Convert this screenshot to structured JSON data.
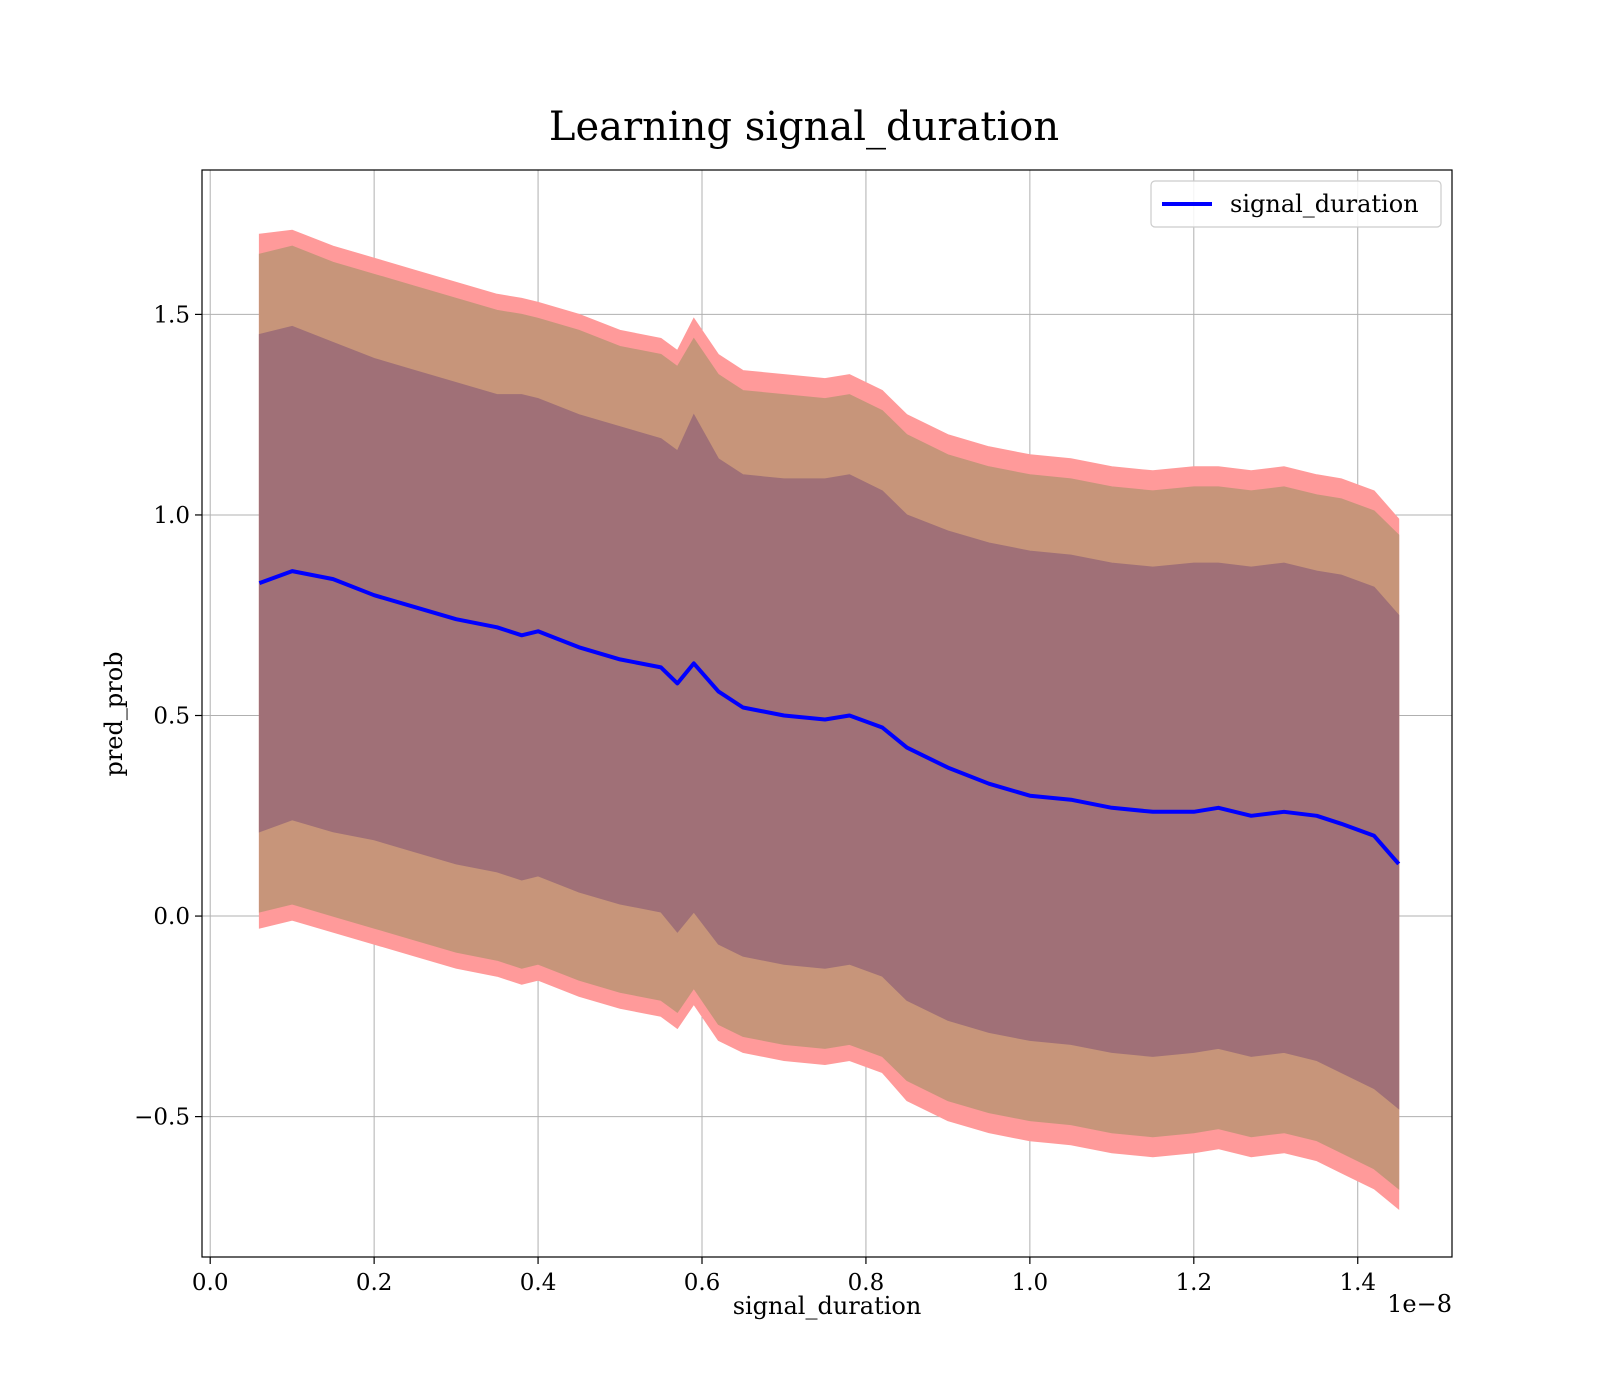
{
  "chart_data": {
    "type": "line",
    "title": "Learning signal_duration",
    "xlabel": "signal_duration",
    "ylabel": "pred_prob",
    "x_offset_label": "1e−8",
    "xlim": [
      -0.01,
      1.515
    ],
    "ylim": [
      -0.85,
      1.86
    ],
    "x_scale_note": "x values in units of 1e-8",
    "xticks": [
      0.0,
      0.2,
      0.4,
      0.6,
      0.8,
      1.0,
      1.2,
      1.4
    ],
    "xtick_labels": [
      "0.0",
      "0.2",
      "0.4",
      "0.6",
      "0.8",
      "1.0",
      "1.2",
      "1.4"
    ],
    "yticks": [
      -0.5,
      0.0,
      0.5,
      1.0,
      1.5
    ],
    "ytick_labels": [
      "−0.5",
      "0.0",
      "0.5",
      "1.0",
      "1.5"
    ],
    "grid": true,
    "legend_position": "top-right",
    "colors": {
      "line": "#0000ff",
      "band_outer": "#ff9a9a",
      "band_middle": "#c7957a",
      "band_inner": "#a07077"
    },
    "series": [
      {
        "name": "signal_duration",
        "x": [
          0.06,
          0.1,
          0.15,
          0.2,
          0.25,
          0.3,
          0.35,
          0.38,
          0.4,
          0.45,
          0.5,
          0.55,
          0.57,
          0.59,
          0.62,
          0.65,
          0.7,
          0.75,
          0.78,
          0.82,
          0.85,
          0.9,
          0.95,
          1.0,
          1.05,
          1.1,
          1.15,
          1.2,
          1.23,
          1.27,
          1.31,
          1.35,
          1.38,
          1.42,
          1.45
        ],
        "y": [
          0.83,
          0.86,
          0.84,
          0.8,
          0.77,
          0.74,
          0.72,
          0.7,
          0.71,
          0.67,
          0.64,
          0.62,
          0.58,
          0.63,
          0.56,
          0.52,
          0.5,
          0.49,
          0.5,
          0.47,
          0.42,
          0.37,
          0.33,
          0.3,
          0.29,
          0.27,
          0.26,
          0.26,
          0.27,
          0.25,
          0.26,
          0.25,
          0.23,
          0.2,
          0.13
        ]
      }
    ],
    "bands": [
      {
        "level": "outer",
        "upper": [
          1.7,
          1.71,
          1.67,
          1.64,
          1.61,
          1.58,
          1.55,
          1.54,
          1.53,
          1.5,
          1.46,
          1.44,
          1.41,
          1.49,
          1.4,
          1.36,
          1.35,
          1.34,
          1.35,
          1.31,
          1.25,
          1.2,
          1.17,
          1.15,
          1.14,
          1.12,
          1.11,
          1.12,
          1.12,
          1.11,
          1.12,
          1.1,
          1.09,
          1.06,
          0.99
        ],
        "lower": [
          -0.03,
          -0.01,
          -0.04,
          -0.07,
          -0.1,
          -0.13,
          -0.15,
          -0.17,
          -0.16,
          -0.2,
          -0.23,
          -0.25,
          -0.28,
          -0.22,
          -0.31,
          -0.34,
          -0.36,
          -0.37,
          -0.36,
          -0.39,
          -0.46,
          -0.51,
          -0.54,
          -0.56,
          -0.57,
          -0.59,
          -0.6,
          -0.59,
          -0.58,
          -0.6,
          -0.59,
          -0.61,
          -0.64,
          -0.68,
          -0.73
        ]
      },
      {
        "level": "middle",
        "upper": [
          1.65,
          1.67,
          1.63,
          1.6,
          1.57,
          1.54,
          1.51,
          1.5,
          1.49,
          1.46,
          1.42,
          1.4,
          1.37,
          1.44,
          1.35,
          1.31,
          1.3,
          1.29,
          1.3,
          1.26,
          1.2,
          1.15,
          1.12,
          1.1,
          1.09,
          1.07,
          1.06,
          1.07,
          1.07,
          1.06,
          1.07,
          1.05,
          1.04,
          1.01,
          0.95
        ],
        "lower": [
          0.01,
          0.03,
          0.0,
          -0.03,
          -0.06,
          -0.09,
          -0.11,
          -0.13,
          -0.12,
          -0.16,
          -0.19,
          -0.21,
          -0.24,
          -0.18,
          -0.27,
          -0.3,
          -0.32,
          -0.33,
          -0.32,
          -0.35,
          -0.41,
          -0.46,
          -0.49,
          -0.51,
          -0.52,
          -0.54,
          -0.55,
          -0.54,
          -0.53,
          -0.55,
          -0.54,
          -0.56,
          -0.59,
          -0.63,
          -0.68
        ]
      },
      {
        "level": "inner",
        "upper": [
          1.45,
          1.47,
          1.43,
          1.39,
          1.36,
          1.33,
          1.3,
          1.3,
          1.29,
          1.25,
          1.22,
          1.19,
          1.16,
          1.25,
          1.14,
          1.1,
          1.09,
          1.09,
          1.1,
          1.06,
          1.0,
          0.96,
          0.93,
          0.91,
          0.9,
          0.88,
          0.87,
          0.88,
          0.88,
          0.87,
          0.88,
          0.86,
          0.85,
          0.82,
          0.75
        ],
        "lower": [
          0.21,
          0.24,
          0.21,
          0.19,
          0.16,
          0.13,
          0.11,
          0.09,
          0.1,
          0.06,
          0.03,
          0.01,
          -0.04,
          0.01,
          -0.07,
          -0.1,
          -0.12,
          -0.13,
          -0.12,
          -0.15,
          -0.21,
          -0.26,
          -0.29,
          -0.31,
          -0.32,
          -0.34,
          -0.35,
          -0.34,
          -0.33,
          -0.35,
          -0.34,
          -0.36,
          -0.39,
          -0.43,
          -0.48
        ]
      }
    ]
  }
}
